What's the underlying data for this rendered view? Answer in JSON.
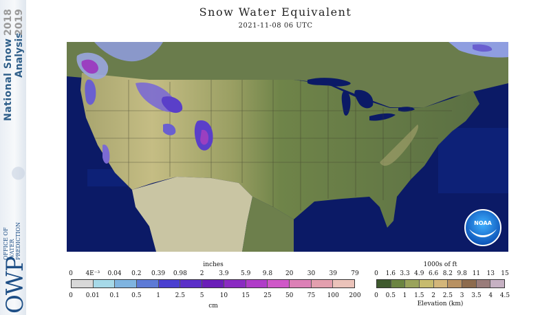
{
  "banner": {
    "title_line1": "National Snow",
    "title_line2": "Analysis",
    "year1": "2018",
    "year2": "2019",
    "org_short": "OWP",
    "org_line1": "OFFICE OF",
    "org_line2": "WATER",
    "org_line3": "PREDICTION"
  },
  "title": "Snow Water Equivalent",
  "subtitle": "2021-11-08 06 UTC",
  "map": {
    "logo_text": "NOAA",
    "colors": {
      "ocean": "#0b1a66",
      "land_low": "#5e7346",
      "land_mid": "#8c9a61",
      "land_high": "#c5bd84",
      "snow_low": "#9aa6e0",
      "snow_mid": "#5a4fc9",
      "snow_high": "#9b3fc0",
      "mexico": "#c9c5a3"
    }
  },
  "swe_legend": {
    "top_unit": "inches",
    "bottom_unit": "cm",
    "inch_ticks": [
      "0",
      "4E⁻³",
      "0.04",
      "0.2",
      "0.39",
      "0.98",
      "2",
      "3.9",
      "5.9",
      "9.8",
      "20",
      "30",
      "39",
      "79"
    ],
    "cm_ticks": [
      "0",
      "0.01",
      "0.1",
      "0.5",
      "1",
      "2.5",
      "5",
      "10",
      "15",
      "25",
      "50",
      "75",
      "100",
      "200"
    ],
    "colors": [
      "#d8d8d8",
      "#a6d9e8",
      "#7fb4e0",
      "#5d7ad6",
      "#4a3fd0",
      "#5b2fc8",
      "#6a1fb8",
      "#8a2bc2",
      "#b03cc8",
      "#cf58c8",
      "#dc80b6",
      "#e39fae",
      "#ebc3ba"
    ]
  },
  "elev_legend": {
    "top_unit": "1000s of ft",
    "bottom_unit": "Elevation (km)",
    "ft_ticks": [
      "0",
      "1.6",
      "3.3",
      "4.9",
      "6.6",
      "8.2",
      "9.8",
      "11",
      "13",
      "15"
    ],
    "km_ticks": [
      "0",
      "0.5",
      "1",
      "1.5",
      "2",
      "2.5",
      "3",
      "3.5",
      "4",
      "4.5"
    ],
    "colors": [
      "#3f5a2e",
      "#6b8441",
      "#9aa35b",
      "#c7bb6e",
      "#d3b67a",
      "#b89162",
      "#8d6b4d",
      "#9a7c7a",
      "#c6b1c3"
    ]
  }
}
